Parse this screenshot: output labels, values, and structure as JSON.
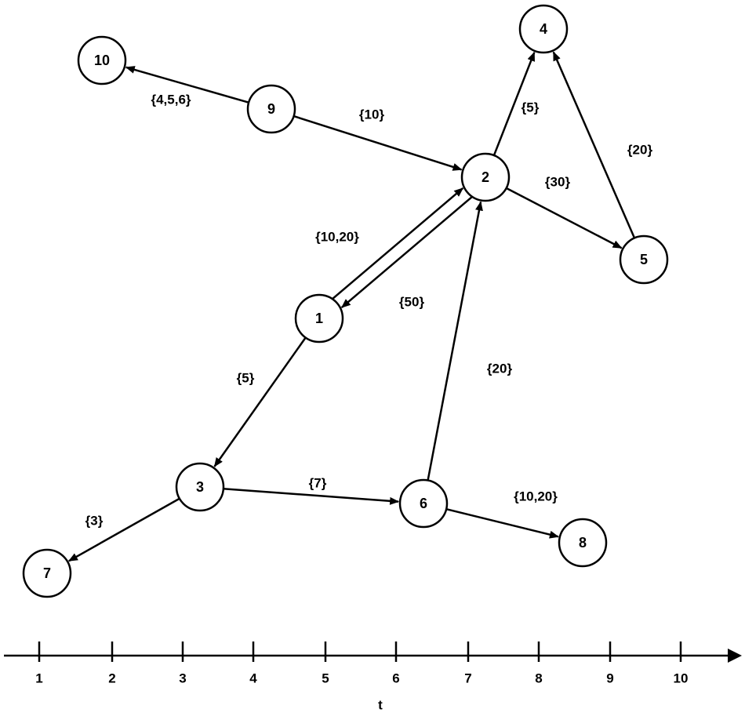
{
  "nodes": [
    {
      "label": "1"
    },
    {
      "label": "2"
    },
    {
      "label": "3"
    },
    {
      "label": "4"
    },
    {
      "label": "5"
    },
    {
      "label": "6"
    },
    {
      "label": "7"
    },
    {
      "label": "8"
    },
    {
      "label": "9"
    },
    {
      "label": "10"
    }
  ],
  "edges": [
    {
      "label": "{4,5,6}"
    },
    {
      "label": "{10}"
    },
    {
      "label": "{5}"
    },
    {
      "label": "{20}"
    },
    {
      "label": "{30}"
    },
    {
      "label": "{10,20}"
    },
    {
      "label": "{50}"
    },
    {
      "label": "{5}"
    },
    {
      "label": "{20}"
    },
    {
      "label": "{7}"
    },
    {
      "label": "{3}"
    },
    {
      "label": "{10,20}"
    }
  ],
  "axis": {
    "ticks": [
      "1",
      "2",
      "3",
      "4",
      "5",
      "6",
      "7",
      "8",
      "9",
      "10"
    ],
    "label": "t"
  }
}
